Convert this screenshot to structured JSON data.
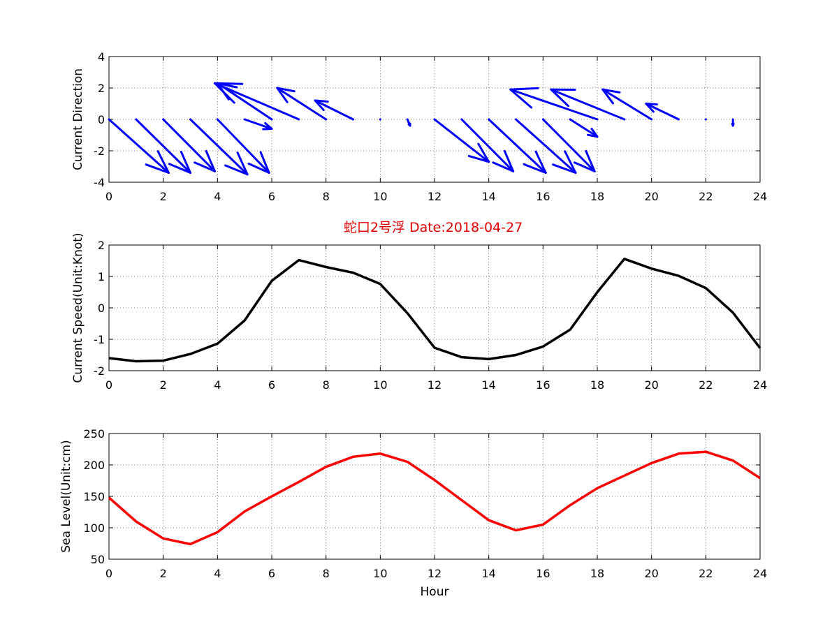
{
  "title": "蛇口2号浮   Date:2018-04-27",
  "colors": {
    "title": "#e00000",
    "arrows": "#0000ff",
    "speed": "#000000",
    "sea_level": "#ff0000"
  },
  "chart_data": [
    {
      "type": "quiver",
      "xlabel": "",
      "ylabel": "Current Direction",
      "xlim": [
        0,
        24
      ],
      "ylim": [
        -4,
        4
      ],
      "xticks": [
        0,
        2,
        4,
        6,
        8,
        10,
        12,
        14,
        16,
        18,
        20,
        22,
        24
      ],
      "yticks": [
        -4,
        -2,
        0,
        2,
        4
      ],
      "grid": true,
      "x": [
        0,
        1,
        2,
        3,
        4,
        5,
        6,
        7,
        8,
        9,
        10,
        11,
        12,
        13,
        14,
        15,
        16,
        17,
        18,
        19,
        20,
        21,
        22,
        23
      ],
      "u": [
        2.2,
        2.0,
        1.9,
        2.1,
        1.9,
        1.0,
        -2.0,
        -3.1,
        -1.8,
        -1.4,
        0.0,
        0.1,
        2.0,
        1.9,
        2.1,
        2.2,
        1.9,
        1.0,
        -3.2,
        -2.7,
        -1.8,
        -1.2,
        0.0,
        0.0
      ],
      "v": [
        -3.4,
        -3.4,
        -3.3,
        -3.5,
        -3.4,
        -0.6,
        2.3,
        2.3,
        2.0,
        1.2,
        0.0,
        -0.4,
        -2.7,
        -3.3,
        -3.4,
        -3.4,
        -3.3,
        -1.1,
        1.9,
        1.9,
        1.9,
        1.0,
        0.0,
        -0.4
      ]
    },
    {
      "type": "line",
      "xlabel": "",
      "ylabel": "Current Speed(Unit:Knot)",
      "xlim": [
        0,
        24
      ],
      "ylim": [
        -2,
        2
      ],
      "xticks": [
        0,
        2,
        4,
        6,
        8,
        10,
        12,
        14,
        16,
        18,
        20,
        22,
        24
      ],
      "yticks": [
        -2,
        -1,
        0,
        1,
        2
      ],
      "grid": true,
      "x": [
        0,
        1,
        2,
        3,
        4,
        5,
        6,
        7,
        8,
        9,
        10,
        11,
        12,
        13,
        14,
        15,
        16,
        17,
        18,
        19,
        20,
        21,
        22,
        23,
        24
      ],
      "y": [
        -1.6,
        -1.7,
        -1.68,
        -1.47,
        -1.14,
        -0.4,
        0.86,
        1.52,
        1.3,
        1.12,
        0.76,
        -0.17,
        -1.27,
        -1.57,
        -1.63,
        -1.5,
        -1.23,
        -0.69,
        0.5,
        1.56,
        1.25,
        1.02,
        0.63,
        -0.15,
        -1.28
      ]
    },
    {
      "type": "line",
      "xlabel": "Hour",
      "ylabel": "Sea Level(Unit:cm)",
      "xlim": [
        0,
        24
      ],
      "ylim": [
        50,
        250
      ],
      "xticks": [
        0,
        2,
        4,
        6,
        8,
        10,
        12,
        14,
        16,
        18,
        20,
        22,
        24
      ],
      "yticks": [
        50,
        100,
        150,
        200,
        250
      ],
      "grid": true,
      "x": [
        0,
        1,
        2,
        3,
        4,
        5,
        6,
        7,
        8,
        9,
        10,
        11,
        12,
        13,
        14,
        15,
        16,
        17,
        18,
        19,
        20,
        21,
        22,
        23,
        24
      ],
      "y": [
        148,
        110,
        83,
        74,
        93,
        126,
        150,
        173,
        197,
        213,
        218,
        205,
        176,
        144,
        112,
        96,
        105,
        136,
        163,
        183,
        203,
        218,
        221,
        207,
        179
      ]
    }
  ]
}
